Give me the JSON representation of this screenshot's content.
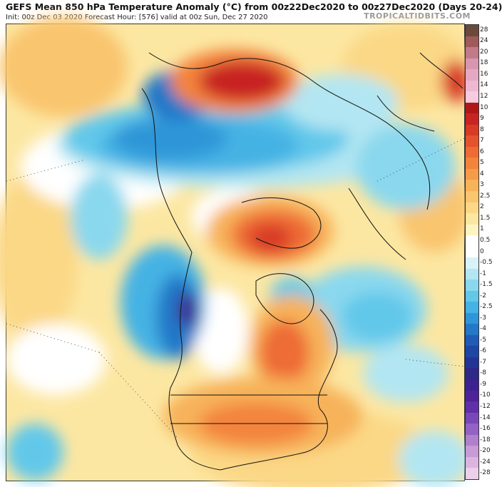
{
  "header": {
    "title": "GEFS Mean 850 hPa Temperature Anomaly (°C) from 00z22Dec2020 to 00z27Dec2020 (Days 20-24)",
    "subtitle": "Init: 00z Dec 03 2020   Forecast Hour: [576]   valid at 00z Sun, Dec 27 2020",
    "brand": "TROPICALTIDBITS.COM"
  },
  "colorbar": {
    "levels": [
      "28",
      "24",
      "20",
      "18",
      "16",
      "14",
      "12",
      "10",
      "9",
      "8",
      "7",
      "6",
      "5",
      "4",
      "3",
      "2.5",
      "2",
      "1.5",
      "1",
      "0.5",
      "0",
      "-0.5",
      "-1",
      "-1.5",
      "-2",
      "-2.5",
      "-3",
      "-4",
      "-5",
      "-6",
      "-7",
      "-8",
      "-9",
      "-10",
      "-12",
      "-14",
      "-16",
      "-18",
      "-20",
      "-24",
      "-28"
    ],
    "colors": [
      "#6b4a3c",
      "#a05a5a",
      "#c07a8a",
      "#d896b0",
      "#e4a8c4",
      "#eeb8d2",
      "#f6cadf",
      "#b01818",
      "#c82424",
      "#d83a26",
      "#e5532c",
      "#ee6c34",
      "#f3843c",
      "#f59c48",
      "#f7b25a",
      "#f9c56e",
      "#fbd886",
      "#fce7a2",
      "#fdf4c2",
      "#ffffff",
      "#ffffff",
      "#d8f2f8",
      "#b2e6f2",
      "#8ad8ee",
      "#62c8ea",
      "#44b2e4",
      "#2f96d8",
      "#2478c8",
      "#1f5cb6",
      "#1e46a4",
      "#243494",
      "#2e2888",
      "#3c2290",
      "#4e2298",
      "#6030a8",
      "#7848b8",
      "#9462c4",
      "#b080cc",
      "#c89ad6",
      "#dcb4e0",
      "#ecd0ea"
    ]
  }
}
